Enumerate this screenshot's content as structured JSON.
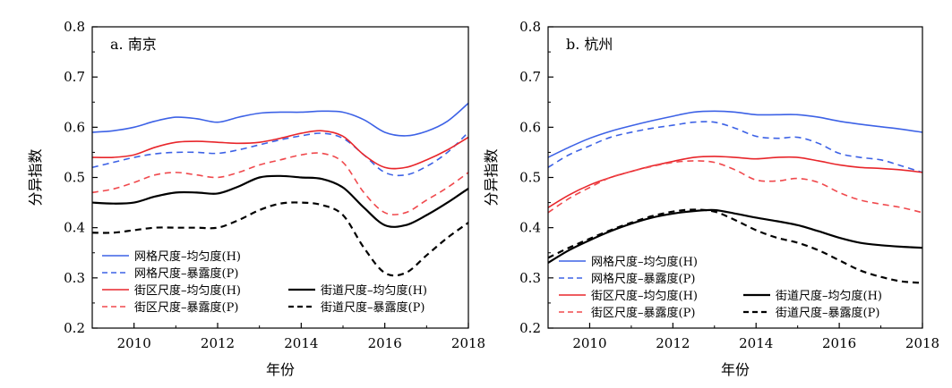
{
  "chart_data": [
    {
      "type": "line",
      "panel_label": "a. 南京",
      "xlabel": "年份",
      "ylabel": "分异指数",
      "xlim": [
        2009,
        2018
      ],
      "ylim": [
        0.2,
        0.8
      ],
      "xticks": [
        2010,
        2012,
        2014,
        2016,
        2018
      ],
      "yticks": [
        "0.2",
        "0.3",
        "0.4",
        "0.5",
        "0.6",
        "0.7",
        "0.8"
      ],
      "grid": false,
      "legend_position": "bottom-left",
      "series": [
        {
          "name": "网格尺度–均匀度(H)",
          "color": "#3d62e6",
          "dash": "solid",
          "x": [
            2009,
            2009.5,
            2010,
            2010.5,
            2011,
            2011.5,
            2012,
            2012.5,
            2013,
            2013.5,
            2014,
            2014.5,
            2015,
            2015.5,
            2016,
            2016.5,
            2017,
            2017.5,
            2018
          ],
          "y": [
            0.59,
            0.593,
            0.6,
            0.612,
            0.62,
            0.617,
            0.61,
            0.62,
            0.628,
            0.63,
            0.63,
            0.632,
            0.63,
            0.615,
            0.59,
            0.583,
            0.592,
            0.612,
            0.648
          ]
        },
        {
          "name": "网格尺度–暴露度(P)",
          "color": "#3d62e6",
          "dash": "dash",
          "x": [
            2009,
            2009.5,
            2010,
            2010.5,
            2011,
            2011.5,
            2012,
            2012.5,
            2013,
            2013.5,
            2014,
            2014.5,
            2015,
            2015.5,
            2016,
            2016.5,
            2017,
            2017.5,
            2018
          ],
          "y": [
            0.52,
            0.53,
            0.54,
            0.547,
            0.55,
            0.55,
            0.548,
            0.555,
            0.565,
            0.575,
            0.583,
            0.588,
            0.578,
            0.545,
            0.51,
            0.505,
            0.522,
            0.55,
            0.59
          ]
        },
        {
          "name": "街区尺度–均匀度(H)",
          "color": "#e8262b",
          "dash": "solid",
          "x": [
            2009,
            2009.5,
            2010,
            2010.5,
            2011,
            2011.5,
            2012,
            2012.5,
            2013,
            2013.5,
            2014,
            2014.5,
            2015,
            2015.5,
            2016,
            2016.5,
            2017,
            2017.5,
            2018
          ],
          "y": [
            0.54,
            0.54,
            0.545,
            0.56,
            0.57,
            0.572,
            0.57,
            0.568,
            0.57,
            0.578,
            0.588,
            0.593,
            0.582,
            0.545,
            0.52,
            0.52,
            0.535,
            0.555,
            0.58
          ]
        },
        {
          "name": "街区尺度–暴露度(P)",
          "color": "#f0494d",
          "dash": "dash",
          "x": [
            2009,
            2009.5,
            2010,
            2010.5,
            2011,
            2011.5,
            2012,
            2012.5,
            2013,
            2013.5,
            2014,
            2014.5,
            2015,
            2015.5,
            2016,
            2016.5,
            2017,
            2017.5,
            2018
          ],
          "y": [
            0.47,
            0.477,
            0.49,
            0.505,
            0.51,
            0.505,
            0.5,
            0.51,
            0.525,
            0.535,
            0.545,
            0.548,
            0.53,
            0.47,
            0.43,
            0.43,
            0.455,
            0.48,
            0.51
          ]
        },
        {
          "name": "街道尺度–均匀度(H)",
          "color": "#000000",
          "dash": "solid",
          "x": [
            2009,
            2009.5,
            2010,
            2010.5,
            2011,
            2011.5,
            2012,
            2012.5,
            2013,
            2013.5,
            2014,
            2014.5,
            2015,
            2015.5,
            2016,
            2016.5,
            2017,
            2017.5,
            2018
          ],
          "y": [
            0.45,
            0.448,
            0.45,
            0.462,
            0.47,
            0.47,
            0.468,
            0.482,
            0.5,
            0.503,
            0.5,
            0.497,
            0.48,
            0.44,
            0.405,
            0.405,
            0.425,
            0.45,
            0.478
          ]
        },
        {
          "name": "街道尺度–暴露度(P)",
          "color": "#000000",
          "dash": "dash",
          "x": [
            2009,
            2009.5,
            2010,
            2010.5,
            2011,
            2011.5,
            2012,
            2012.5,
            2013,
            2013.5,
            2014,
            2014.5,
            2015,
            2015.5,
            2016,
            2016.5,
            2017,
            2017.5,
            2018
          ],
          "y": [
            0.39,
            0.39,
            0.395,
            0.4,
            0.4,
            0.4,
            0.4,
            0.415,
            0.435,
            0.448,
            0.45,
            0.445,
            0.425,
            0.36,
            0.31,
            0.31,
            0.345,
            0.38,
            0.41
          ]
        }
      ]
    },
    {
      "type": "line",
      "panel_label": "b. 杭州",
      "xlabel": "年份",
      "ylabel": "分异指数",
      "xlim": [
        2009,
        2018
      ],
      "ylim": [
        0.2,
        0.8
      ],
      "xticks": [
        2010,
        2012,
        2014,
        2016,
        2018
      ],
      "yticks": [
        "0.2",
        "0.3",
        "0.4",
        "0.5",
        "0.6",
        "0.7",
        "0.8"
      ],
      "grid": false,
      "legend_position": "bottom-left",
      "series": [
        {
          "name": "网格尺度–均匀度(H)",
          "color": "#3d62e6",
          "dash": "solid",
          "x": [
            2009,
            2009.5,
            2010,
            2010.5,
            2011,
            2011.5,
            2012,
            2012.5,
            2013,
            2013.5,
            2014,
            2014.5,
            2015,
            2015.5,
            2016,
            2016.5,
            2017,
            2017.5,
            2018
          ],
          "y": [
            0.54,
            0.56,
            0.578,
            0.592,
            0.603,
            0.613,
            0.622,
            0.63,
            0.632,
            0.63,
            0.625,
            0.625,
            0.625,
            0.62,
            0.612,
            0.606,
            0.601,
            0.596,
            0.59
          ]
        },
        {
          "name": "网格尺度–暴露度(P)",
          "color": "#3d62e6",
          "dash": "dash",
          "x": [
            2009,
            2009.5,
            2010,
            2010.5,
            2011,
            2011.5,
            2012,
            2012.5,
            2013,
            2013.5,
            2014,
            2014.5,
            2015,
            2015.5,
            2016,
            2016.5,
            2017,
            2017.5,
            2018
          ],
          "y": [
            0.52,
            0.545,
            0.563,
            0.58,
            0.59,
            0.598,
            0.604,
            0.61,
            0.61,
            0.598,
            0.582,
            0.578,
            0.58,
            0.568,
            0.548,
            0.54,
            0.535,
            0.523,
            0.51
          ]
        },
        {
          "name": "街区尺度–均匀度(H)",
          "color": "#e8262b",
          "dash": "solid",
          "x": [
            2009,
            2009.5,
            2010,
            2010.5,
            2011,
            2011.5,
            2012,
            2012.5,
            2013,
            2013.5,
            2014,
            2014.5,
            2015,
            2015.5,
            2016,
            2016.5,
            2017,
            2017.5,
            2018
          ],
          "y": [
            0.44,
            0.465,
            0.485,
            0.5,
            0.512,
            0.523,
            0.532,
            0.54,
            0.542,
            0.54,
            0.537,
            0.54,
            0.54,
            0.533,
            0.525,
            0.52,
            0.518,
            0.515,
            0.51
          ]
        },
        {
          "name": "街区尺度–暴露度(P)",
          "color": "#f0494d",
          "dash": "dash",
          "x": [
            2009,
            2009.5,
            2010,
            2010.5,
            2011,
            2011.5,
            2012,
            2012.5,
            2013,
            2013.5,
            2014,
            2014.5,
            2015,
            2015.5,
            2016,
            2016.5,
            2017,
            2017.5,
            2018
          ],
          "y": [
            0.43,
            0.458,
            0.48,
            0.5,
            0.512,
            0.522,
            0.53,
            0.533,
            0.53,
            0.515,
            0.495,
            0.493,
            0.498,
            0.49,
            0.47,
            0.455,
            0.447,
            0.44,
            0.43
          ]
        },
        {
          "name": "街道尺度–均匀度(H)",
          "color": "#000000",
          "dash": "solid",
          "x": [
            2009,
            2009.5,
            2010,
            2010.5,
            2011,
            2011.5,
            2012,
            2012.5,
            2013,
            2013.5,
            2014,
            2014.5,
            2015,
            2015.5,
            2016,
            2016.5,
            2017,
            2017.5,
            2018
          ],
          "y": [
            0.33,
            0.355,
            0.375,
            0.393,
            0.408,
            0.42,
            0.428,
            0.433,
            0.435,
            0.428,
            0.42,
            0.413,
            0.405,
            0.393,
            0.38,
            0.37,
            0.365,
            0.362,
            0.36
          ]
        },
        {
          "name": "街道尺度–暴露度(P)",
          "color": "#000000",
          "dash": "dash",
          "x": [
            2009,
            2009.5,
            2010,
            2010.5,
            2011,
            2011.5,
            2012,
            2012.5,
            2013,
            2013.5,
            2014,
            2014.5,
            2015,
            2015.5,
            2016,
            2016.5,
            2017,
            2017.5,
            2018
          ],
          "y": [
            0.34,
            0.36,
            0.378,
            0.395,
            0.41,
            0.423,
            0.432,
            0.436,
            0.432,
            0.415,
            0.395,
            0.38,
            0.37,
            0.355,
            0.335,
            0.315,
            0.302,
            0.293,
            0.29
          ]
        }
      ]
    }
  ]
}
